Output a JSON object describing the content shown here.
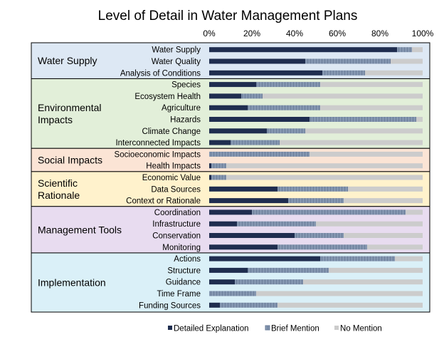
{
  "chart_data": {
    "type": "bar",
    "stacked": true,
    "orientation": "horizontal",
    "title": "Level of Detail in Water Management Plans",
    "xlim": [
      0,
      100
    ],
    "x_ticks": [
      "0%",
      "20%",
      "40%",
      "60%",
      "80%",
      "100%"
    ],
    "legend_position": "bottom",
    "series": [
      {
        "name": "Detailed Explanation",
        "color": "#1f2d4f",
        "style": "solid"
      },
      {
        "name": "Brief Mention",
        "color": "#8496b0",
        "style": "dashed"
      },
      {
        "name": "No Mention",
        "color": "#cccccc",
        "style": "solid"
      }
    ],
    "groups": [
      {
        "name": "Water Supply",
        "bg": "#dde8f4",
        "rows": [
          {
            "label": "Water Supply",
            "values": [
              88,
              7,
              5
            ]
          },
          {
            "label": "Water Quality",
            "values": [
              45,
              40,
              15
            ]
          },
          {
            "label": "Analysis of Conditions",
            "values": [
              53,
              20,
              27
            ]
          }
        ]
      },
      {
        "name": "Environmental Impacts",
        "bg": "#e2efd9",
        "rows": [
          {
            "label": "Species",
            "values": [
              22,
              30,
              48
            ]
          },
          {
            "label": "Ecosystem Health",
            "values": [
              15,
              10,
              75
            ]
          },
          {
            "label": "Agriculture",
            "values": [
              18,
              34,
              48
            ]
          },
          {
            "label": "Hazards",
            "values": [
              47,
              50,
              3
            ]
          },
          {
            "label": "Climate Change",
            "values": [
              27,
              18,
              55
            ]
          },
          {
            "label": "Interconnected Impacts",
            "values": [
              10,
              23,
              67
            ]
          }
        ]
      },
      {
        "name": "Social Impacts",
        "bg": "#fbe4d5",
        "rows": [
          {
            "label": "Socioeconomic Impacts",
            "values": [
              0,
              47,
              53
            ]
          },
          {
            "label": "Health Impacts",
            "values": [
              1,
              7,
              92
            ]
          }
        ]
      },
      {
        "name": "Scientific Rationale",
        "bg": "#fff2cc",
        "rows": [
          {
            "label": "Economic Value",
            "values": [
              1,
              7,
              92
            ]
          },
          {
            "label": "Data Sources",
            "values": [
              32,
              33,
              35
            ]
          },
          {
            "label": "Context or Rationale",
            "values": [
              37,
              26,
              37
            ]
          }
        ]
      },
      {
        "name": "Management Tools",
        "bg": "#e8dcf0",
        "rows": [
          {
            "label": "Coordination",
            "values": [
              20,
              72,
              8
            ]
          },
          {
            "label": "Infrastructure",
            "values": [
              13,
              37,
              50
            ]
          },
          {
            "label": "Conservation",
            "values": [
              40,
              23,
              37
            ]
          },
          {
            "label": "Monitoring",
            "values": [
              32,
              42,
              26
            ]
          }
        ]
      },
      {
        "name": "Implementation",
        "bg": "#daf0f8",
        "rows": [
          {
            "label": "Actions",
            "values": [
              52,
              35,
              13
            ]
          },
          {
            "label": "Structure",
            "values": [
              18,
              38,
              44
            ]
          },
          {
            "label": "Guidance",
            "values": [
              12,
              32,
              56
            ]
          },
          {
            "label": "Time Frame",
            "values": [
              0,
              22,
              78
            ]
          },
          {
            "label": "Funding Sources",
            "values": [
              5,
              27,
              68
            ]
          }
        ]
      }
    ]
  }
}
